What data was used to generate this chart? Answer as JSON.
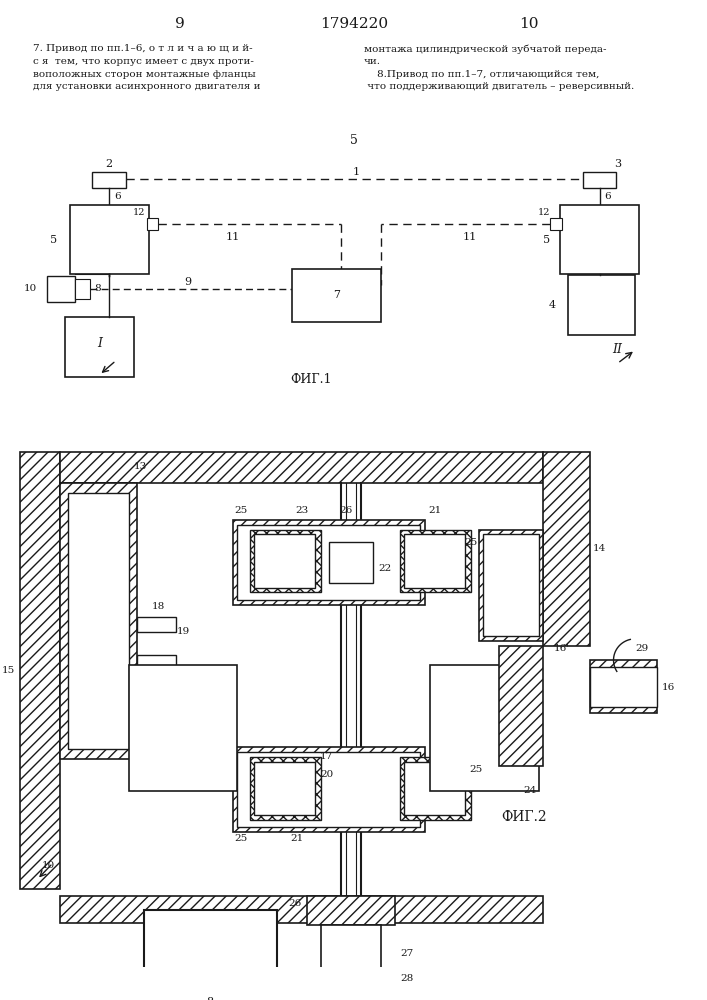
{
  "page_num_left": "9",
  "patent_num": "1794220",
  "page_num_right": "10",
  "text_left_lines": [
    "7. Привод по пп.1–6, о т л и ч а ю щ и й-",
    "с я  тем, что корпус имеет с двух проти-",
    "воположных сторон монтажные фланцы",
    "для установки асинхронного двигателя и"
  ],
  "text_right_lines": [
    "монтажа цилиндрической зубчатой переда-",
    "чи.",
    "    8.Привод по пп.1–7, отличающийся тем,",
    " что поддерживающий двигатель – реверсивный."
  ],
  "center_num": "5",
  "fig1_label": "ФИГ.1",
  "fig2_label": "ФИГ.2",
  "bg_color": "#ffffff",
  "line_color": "#1a1a1a"
}
